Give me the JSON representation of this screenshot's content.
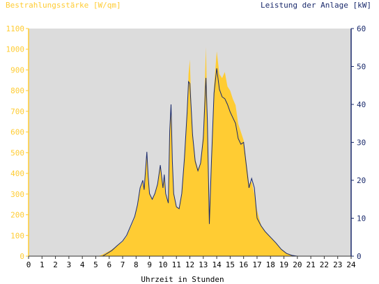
{
  "chart_data": {
    "type": "area",
    "left_axis_title": "Bestrahlungsstärke [W/qm]",
    "right_axis_title": "Leistung der Anlage [kW]",
    "xlabel": "Uhrzeit in Stunden",
    "x_ticks": [
      "0",
      "1",
      "2",
      "3",
      "4",
      "5",
      "6",
      "7",
      "8",
      "9",
      "10",
      "11",
      "12",
      "13",
      "14",
      "15",
      "16",
      "17",
      "18",
      "19",
      "20",
      "21",
      "22",
      "23",
      "24"
    ],
    "y_left_ticks": [
      "0",
      "100",
      "200",
      "300",
      "400",
      "500",
      "600",
      "700",
      "800",
      "900",
      "1000",
      "1100"
    ],
    "y_right_ticks": [
      "0",
      "10",
      "20",
      "30",
      "40",
      "50",
      "60"
    ],
    "xlim": [
      0,
      24
    ],
    "ylim_left": [
      0,
      1100
    ],
    "ylim_right": [
      0,
      60
    ],
    "colors": {
      "irradiance_fill": "#ffcc33",
      "power_line": "#1a2a6c",
      "plot_bg": "#dcdcdc",
      "left_axis": "#ffcc33",
      "right_axis": "#1a2a6c"
    },
    "series": [
      {
        "unit": "W/qm",
        "axis": "left",
        "style": "area",
        "points": [
          [
            0,
            0
          ],
          [
            5.2,
            0
          ],
          [
            5.5,
            8
          ],
          [
            6.0,
            25
          ],
          [
            6.5,
            45
          ],
          [
            7.0,
            70
          ],
          [
            7.3,
            95
          ],
          [
            7.6,
            140
          ],
          [
            7.9,
            185
          ],
          [
            8.1,
            240
          ],
          [
            8.3,
            320
          ],
          [
            8.5,
            360
          ],
          [
            8.6,
            320
          ],
          [
            8.7,
            410
          ],
          [
            8.8,
            500
          ],
          [
            8.9,
            380
          ],
          [
            9.0,
            300
          ],
          [
            9.2,
            270
          ],
          [
            9.4,
            300
          ],
          [
            9.6,
            350
          ],
          [
            9.8,
            440
          ],
          [
            10.0,
            330
          ],
          [
            10.1,
            400
          ],
          [
            10.2,
            300
          ],
          [
            10.4,
            260
          ],
          [
            10.5,
            600
          ],
          [
            10.6,
            720
          ],
          [
            10.7,
            450
          ],
          [
            10.8,
            300
          ],
          [
            11.0,
            240
          ],
          [
            11.2,
            230
          ],
          [
            11.4,
            300
          ],
          [
            11.6,
            480
          ],
          [
            11.8,
            700
          ],
          [
            11.9,
            880
          ],
          [
            12.0,
            950
          ],
          [
            12.1,
            750
          ],
          [
            12.2,
            600
          ],
          [
            12.4,
            470
          ],
          [
            12.6,
            420
          ],
          [
            12.8,
            450
          ],
          [
            13.0,
            600
          ],
          [
            13.2,
            1010
          ],
          [
            13.3,
            700
          ],
          [
            13.45,
            200
          ],
          [
            13.6,
            460
          ],
          [
            13.8,
            820
          ],
          [
            14.0,
            990
          ],
          [
            14.2,
            880
          ],
          [
            14.4,
            860
          ],
          [
            14.6,
            890
          ],
          [
            14.8,
            820
          ],
          [
            15.0,
            800
          ],
          [
            15.2,
            760
          ],
          [
            15.4,
            730
          ],
          [
            15.6,
            640
          ],
          [
            15.8,
            600
          ],
          [
            16.0,
            560
          ],
          [
            16.2,
            460
          ],
          [
            16.4,
            350
          ],
          [
            16.6,
            360
          ],
          [
            16.8,
            300
          ],
          [
            17.0,
            220
          ],
          [
            17.3,
            150
          ],
          [
            17.6,
            120
          ],
          [
            18.0,
            90
          ],
          [
            18.4,
            65
          ],
          [
            18.8,
            35
          ],
          [
            19.2,
            15
          ],
          [
            19.6,
            4
          ],
          [
            20.0,
            0
          ],
          [
            24,
            0
          ]
        ]
      },
      {
        "unit": "kW",
        "axis": "right",
        "style": "line",
        "points": [
          [
            0,
            0
          ],
          [
            5.5,
            0
          ],
          [
            5.8,
            0.6
          ],
          [
            6.2,
            1.5
          ],
          [
            6.6,
            2.8
          ],
          [
            7.0,
            4.0
          ],
          [
            7.3,
            5.5
          ],
          [
            7.6,
            8.0
          ],
          [
            7.9,
            10.5
          ],
          [
            8.1,
            13.5
          ],
          [
            8.3,
            18.0
          ],
          [
            8.5,
            20.0
          ],
          [
            8.6,
            17.5
          ],
          [
            8.7,
            22.5
          ],
          [
            8.8,
            27.5
          ],
          [
            8.9,
            21.0
          ],
          [
            9.0,
            16.5
          ],
          [
            9.2,
            15.0
          ],
          [
            9.4,
            16.5
          ],
          [
            9.6,
            19.0
          ],
          [
            9.8,
            24.0
          ],
          [
            10.0,
            18.0
          ],
          [
            10.1,
            21.5
          ],
          [
            10.2,
            16.5
          ],
          [
            10.4,
            14.0
          ],
          [
            10.5,
            33.0
          ],
          [
            10.6,
            40.0
          ],
          [
            10.7,
            25.0
          ],
          [
            10.8,
            16.5
          ],
          [
            11.0,
            13.0
          ],
          [
            11.2,
            12.5
          ],
          [
            11.4,
            16.5
          ],
          [
            11.6,
            26.0
          ],
          [
            11.8,
            38.0
          ],
          [
            11.9,
            46.0
          ],
          [
            12.0,
            45.5
          ],
          [
            12.1,
            39.0
          ],
          [
            12.2,
            32.0
          ],
          [
            12.4,
            25.0
          ],
          [
            12.6,
            22.5
          ],
          [
            12.8,
            24.5
          ],
          [
            13.0,
            31.0
          ],
          [
            13.2,
            47.0
          ],
          [
            13.3,
            36.0
          ],
          [
            13.45,
            8.5
          ],
          [
            13.6,
            24.5
          ],
          [
            13.8,
            43.0
          ],
          [
            14.0,
            49.5
          ],
          [
            14.2,
            44.0
          ],
          [
            14.4,
            42.0
          ],
          [
            14.6,
            41.5
          ],
          [
            14.8,
            40.0
          ],
          [
            15.0,
            38.0
          ],
          [
            15.2,
            36.5
          ],
          [
            15.4,
            35.0
          ],
          [
            15.6,
            31.0
          ],
          [
            15.8,
            29.5
          ],
          [
            16.0,
            30.0
          ],
          [
            16.2,
            24.0
          ],
          [
            16.4,
            18.0
          ],
          [
            16.6,
            20.5
          ],
          [
            16.8,
            18.0
          ],
          [
            17.0,
            10.0
          ],
          [
            17.3,
            8.0
          ],
          [
            17.6,
            6.5
          ],
          [
            18.0,
            5.0
          ],
          [
            18.4,
            3.5
          ],
          [
            18.8,
            1.8
          ],
          [
            19.2,
            0.7
          ],
          [
            19.6,
            0.2
          ],
          [
            20.0,
            0
          ],
          [
            24,
            0
          ]
        ]
      }
    ]
  }
}
